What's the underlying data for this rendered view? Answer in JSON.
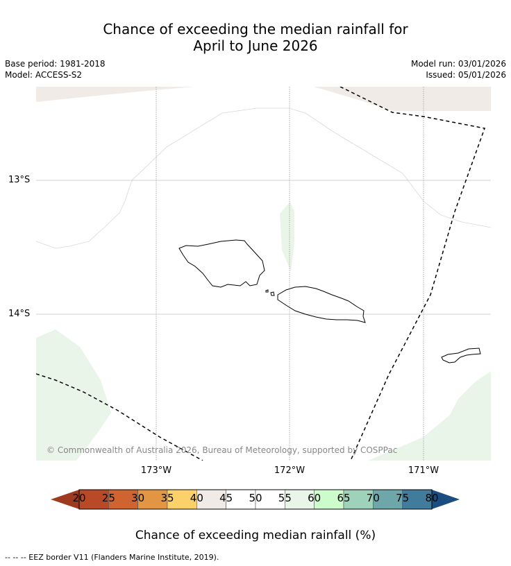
{
  "header": {
    "title_line1": "Chance of exceeding the median rainfall for",
    "title_line2": "April to June 2026",
    "base_period": "Base period: 1981-2018",
    "model": "Model: ACCESS-S2",
    "model_run": "Model run: 03/01/2026",
    "issued": "Issued: 05/01/2026"
  },
  "map": {
    "lat_labels": [
      "13°S",
      "14°S"
    ],
    "lon_labels": [
      "173°W",
      "172°W",
      "171°W"
    ],
    "copyright": "© Commonwealth of Australia 2026, Bureau of Meteorology, supported by COSPPac",
    "colors": {
      "near_median": "#f0ebe6",
      "slightly_above": "#e8f5e8",
      "grid": "#c0c0c0",
      "coast": "#000000",
      "eez": "#000000"
    }
  },
  "colorbar": {
    "title": "Chance of exceeding median rainfall (%)",
    "ticks": [
      "20",
      "25",
      "30",
      "35",
      "40",
      "45",
      "50",
      "55",
      "60",
      "65",
      "70",
      "75",
      "80"
    ],
    "low_extend_color": "#9e3a1f",
    "high_extend_color": "#1a4e80",
    "segment_colors": [
      "#b84a27",
      "#cf6431",
      "#e29543",
      "#fdd169",
      "#f0ebe6",
      "#ffffff",
      "#ffffff",
      "#e8f5e8",
      "#ccfccc",
      "#9fd2bb",
      "#6ea6a9",
      "#427c9c"
    ]
  },
  "footer": {
    "note": "--  --  -- EEZ border V11 (Flanders Marine Institute, 2019)."
  }
}
